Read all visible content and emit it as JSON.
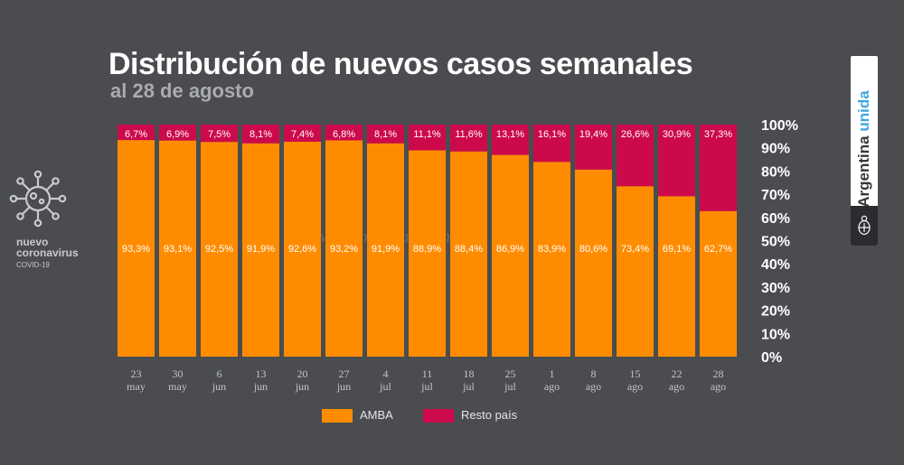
{
  "header": {
    "title": "Distribución de nuevos casos semanales",
    "subtitle": "al 28 de agosto"
  },
  "logo": {
    "icon": "virus-icon",
    "line1": "nuevo",
    "line2": "coronavirus",
    "line3": "COVID-19"
  },
  "brand": {
    "word1": "Argentina",
    "word2": "unida",
    "seal_icon": "coat-of-arms-icon",
    "accent": "#3fa8e0"
  },
  "watermark": "www.fmalba.com.ar",
  "legend": [
    {
      "label": "AMBA",
      "color": "#ff8c00"
    },
    {
      "label": "Resto país",
      "color": "#cc0a4b"
    }
  ],
  "chart_data": {
    "type": "bar",
    "stacked": true,
    "percent_stacked": true,
    "categories": [
      [
        "23",
        "may"
      ],
      [
        "30",
        "may"
      ],
      [
        "6",
        "jun"
      ],
      [
        "13",
        "jun"
      ],
      [
        "20",
        "jun"
      ],
      [
        "27",
        "jun"
      ],
      [
        "4",
        "jul"
      ],
      [
        "11",
        "jul"
      ],
      [
        "18",
        "jul"
      ],
      [
        "25",
        "jul"
      ],
      [
        "1",
        "ago"
      ],
      [
        "8",
        "ago"
      ],
      [
        "15",
        "ago"
      ],
      [
        "22",
        "ago"
      ],
      [
        "28",
        "ago"
      ]
    ],
    "series": [
      {
        "name": "AMBA",
        "color": "#ff8c00",
        "values": [
          93.3,
          93.1,
          92.5,
          91.9,
          92.6,
          93.2,
          91.9,
          88.9,
          88.4,
          86.9,
          83.9,
          80.6,
          73.4,
          69.1,
          62.7
        ],
        "labels": [
          "93,3%",
          "93,1%",
          "92,5%",
          "91,9%",
          "92,6%",
          "93,2%",
          "91,9%",
          "88,9%",
          "88,4%",
          "86,9%",
          "83,9%",
          "80,6%",
          "73,4%",
          "69,1%",
          "62,7%"
        ]
      },
      {
        "name": "Resto país",
        "color": "#cc0a4b",
        "values": [
          6.7,
          6.9,
          7.5,
          8.1,
          7.4,
          6.8,
          8.1,
          11.1,
          11.6,
          13.1,
          16.1,
          19.4,
          26.6,
          30.9,
          37.3
        ],
        "labels": [
          "6,7%",
          "6,9%",
          "7,5%",
          "8,1%",
          "7,4%",
          "6,8%",
          "8,1%",
          "11,1%",
          "11,6%",
          "13,1%",
          "16,1%",
          "19,4%",
          "26,6%",
          "30,9%",
          "37,3%"
        ]
      }
    ],
    "yaxis": {
      "ticks": [
        0,
        10,
        20,
        30,
        40,
        50,
        60,
        70,
        80,
        90,
        100
      ],
      "tick_labels": [
        "0%",
        "10%",
        "20%",
        "30%",
        "40%",
        "50%",
        "60%",
        "70%",
        "80%",
        "90%",
        "100%"
      ],
      "position": "right",
      "range": [
        0,
        100
      ]
    },
    "grid": false,
    "legend_position": "bottom"
  }
}
